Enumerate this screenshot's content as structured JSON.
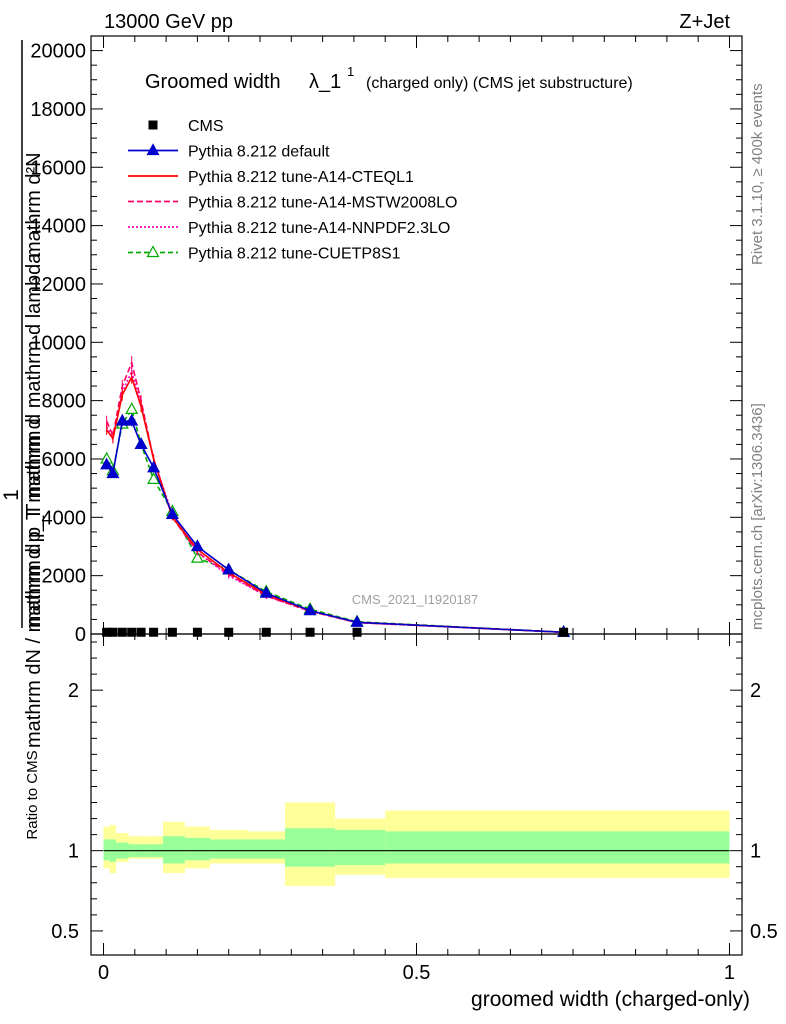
{
  "header": {
    "energy": "13000 GeV pp",
    "process": "Z+Jet"
  },
  "side": {
    "rivet": "Rivet 3.1.10, ≥ 400k events",
    "mcplots": "mcplots.cern.ch [arXiv:1306.3436]"
  },
  "plot_title": "Groomed width",
  "plot_title_symbol": "λ_1",
  "plot_title_sup": "1",
  "plot_title_rest": "(charged only) (CMS jet substructure)",
  "analysis_id": "CMS_2021_I1920187",
  "ylabel_numer": "1",
  "ylabel_lines": [
    "mathrm d²N",
    "mathrm d p_T mathrm d mathrm d lambda",
    "mathrm dN / mathrm d p_T mathrm d"
  ],
  "xlabel": "groomed width (charged-only)",
  "ratio_ylabel": "Ratio to CMS",
  "legend": [
    {
      "label": "CMS",
      "color": "#000000",
      "marker": "square",
      "dash": ""
    },
    {
      "label": "Pythia 8.212 default",
      "color": "#0000cc",
      "marker": "triangle",
      "dash": ""
    },
    {
      "label": "Pythia 8.212 tune-A14-CTEQL1",
      "color": "#ff0000",
      "marker": "none",
      "dash": ""
    },
    {
      "label": "Pythia 8.212 tune-A14-MSTW2008LO",
      "color": "#ff0066",
      "marker": "none",
      "dash": "6,3"
    },
    {
      "label": "Pythia 8.212 tune-A14-NNPDF2.3LO",
      "color": "#ff00cc",
      "marker": "none",
      "dash": "2,2"
    },
    {
      "label": "Pythia 8.212 tune-CUETP8S1",
      "color": "#00aa00",
      "marker": "triangle-open",
      "dash": "5,3"
    }
  ],
  "chart_data": [
    {
      "type": "line",
      "panel": "main",
      "xlim": [
        -0.02,
        1.02
      ],
      "ylim": [
        0,
        20500
      ],
      "y_ticks": [
        0,
        2000,
        4000,
        6000,
        8000,
        10000,
        12000,
        14000,
        16000,
        18000,
        20000
      ],
      "y_tick_labels": [
        "0",
        "2000",
        "4000",
        "6000",
        "8000",
        "10000",
        "12000",
        "14000",
        "16000",
        "18000",
        "20000"
      ],
      "x": [
        0.005,
        0.015,
        0.03,
        0.045,
        0.06,
        0.08,
        0.11,
        0.15,
        0.2,
        0.26,
        0.33,
        0.405,
        0.735
      ],
      "series": [
        {
          "name": "CMS",
          "values": [
            60,
            60,
            60,
            60,
            60,
            60,
            60,
            60,
            60,
            60,
            60,
            60,
            60
          ]
        },
        {
          "name": "Pythia 8.212 default",
          "values": [
            5800,
            5500,
            7300,
            7300,
            6500,
            5700,
            4100,
            3000,
            2200,
            1400,
            800,
            400,
            60
          ]
        },
        {
          "name": "Pythia 8.212 tune-A14-CTEQL1",
          "values": [
            7000,
            6700,
            8200,
            8800,
            7800,
            6000,
            4000,
            2900,
            2100,
            1350,
            800,
            400,
            60
          ]
        },
        {
          "name": "Pythia 8.212 tune-A14-MSTW2008LO",
          "values": [
            7300,
            6800,
            8500,
            9300,
            8000,
            6000,
            4000,
            2800,
            2050,
            1300,
            780,
            390,
            60
          ]
        },
        {
          "name": "Pythia 8.212 tune-A14-NNPDF2.3LO",
          "values": [
            7100,
            6700,
            8300,
            9000,
            7900,
            6000,
            4100,
            2800,
            2000,
            1300,
            780,
            390,
            60
          ]
        },
        {
          "name": "Pythia 8.212 tune-CUETP8S1",
          "values": [
            6000,
            5600,
            7200,
            7700,
            6500,
            5300,
            4200,
            2600,
            2200,
            1450,
            850,
            420,
            60
          ]
        }
      ]
    },
    {
      "type": "area",
      "panel": "ratio",
      "xlim": [
        -0.02,
        1.02
      ],
      "ylim": [
        0.35,
        2.35
      ],
      "y_ticks": [
        0.5,
        1,
        2
      ],
      "y_tick_labels": [
        "0.5",
        "1",
        "2"
      ],
      "x_ticks": [
        0,
        0.5,
        1
      ],
      "x_tick_labels": [
        "0",
        "0.5",
        "1"
      ],
      "bins": [
        0.0,
        0.01,
        0.02,
        0.04,
        0.05,
        0.07,
        0.095,
        0.13,
        0.17,
        0.23,
        0.29,
        0.37,
        0.45,
        1.0
      ],
      "inner_up": [
        1.07,
        1.07,
        1.05,
        1.04,
        1.04,
        1.04,
        1.09,
        1.08,
        1.07,
        1.07,
        1.14,
        1.13,
        1.12
      ],
      "inner_down": [
        0.94,
        0.93,
        0.95,
        0.96,
        0.96,
        0.96,
        0.92,
        0.94,
        0.95,
        0.95,
        0.9,
        0.91,
        0.92
      ],
      "outer_up": [
        1.15,
        1.16,
        1.11,
        1.09,
        1.09,
        1.09,
        1.18,
        1.15,
        1.13,
        1.12,
        1.3,
        1.2,
        1.25
      ],
      "outer_down": [
        0.89,
        0.86,
        0.93,
        0.95,
        0.95,
        0.95,
        0.86,
        0.89,
        0.92,
        0.92,
        0.78,
        0.85,
        0.83
      ]
    }
  ]
}
